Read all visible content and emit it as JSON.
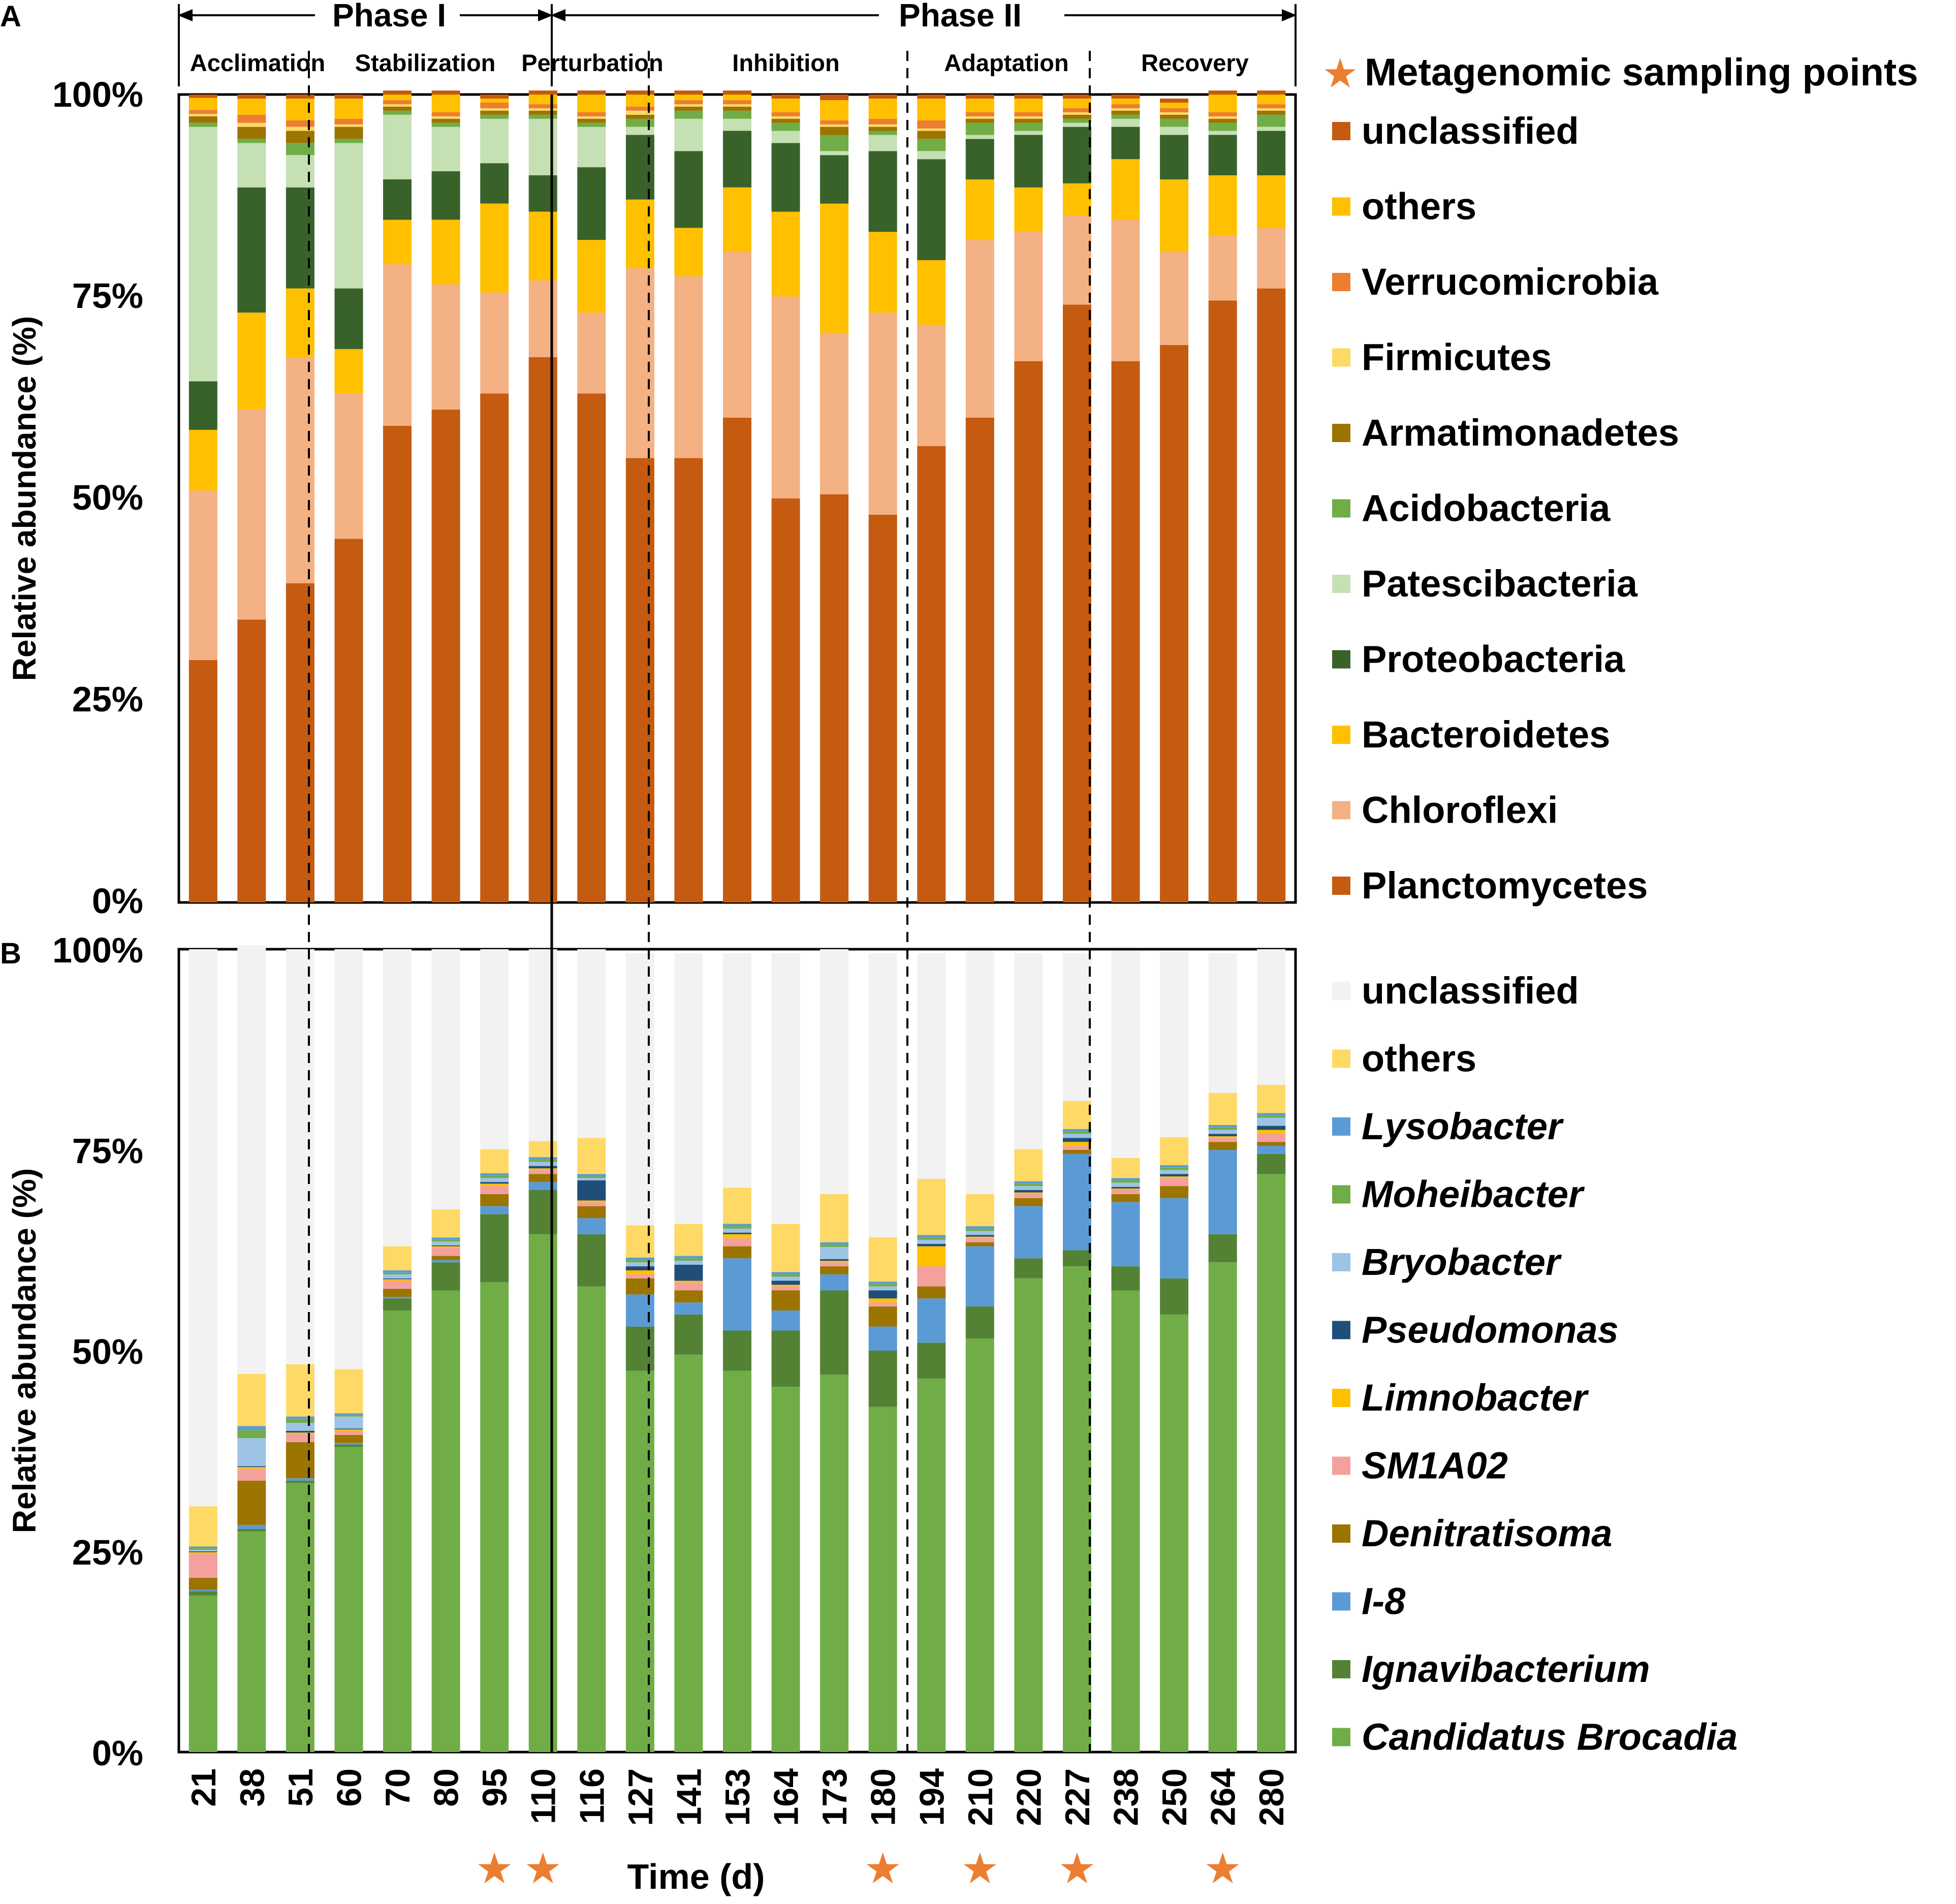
{
  "chart_data": [
    {
      "panel": "A",
      "type": "stacked-bar",
      "ylabel": "Relative abundance (%)",
      "xlabel": "",
      "ylim": [
        0,
        100
      ],
      "yticks": [
        "0%",
        "25%",
        "50%",
        "75%",
        "100%"
      ],
      "categories": [
        "21",
        "38",
        "51",
        "60",
        "70",
        "80",
        "95",
        "110",
        "116",
        "127",
        "141",
        "153",
        "164",
        "173",
        "180",
        "194",
        "210",
        "220",
        "227",
        "238",
        "250",
        "264",
        "280"
      ],
      "phases": [
        {
          "label": "Phase I"
        },
        {
          "label": "Phase II"
        }
      ],
      "stages": [
        "Acclimation",
        "Stabilization",
        "Perturbation",
        "Inhibition",
        "Adaptation",
        "Recovery"
      ],
      "legend_note": "Metagenomic sampling points",
      "series": [
        {
          "name": "Planctomycetes",
          "color": "#C55A11",
          "values": [
            30,
            35,
            39.5,
            45,
            59,
            61,
            63,
            67.5,
            63,
            55,
            55,
            60,
            50,
            50.5,
            48,
            56.5,
            60,
            67,
            74,
            67,
            69,
            74.5,
            76
          ]
        },
        {
          "name": "Chloroflexi",
          "color": "#F4B183",
          "values": [
            21,
            26,
            28,
            18,
            20,
            15.5,
            12.5,
            9.5,
            10,
            23.5,
            22.5,
            20.5,
            25,
            20,
            25,
            15,
            22,
            16,
            11,
            17.5,
            11.5,
            8,
            7.5
          ]
        },
        {
          "name": "Bacteroidetes",
          "color": "#FFC000",
          "values": [
            7.5,
            12,
            8.5,
            5.5,
            5.5,
            8,
            11,
            8.5,
            9,
            8.5,
            6,
            8,
            10.5,
            16,
            10,
            8,
            7.5,
            5.5,
            4,
            7.5,
            9,
            7.5,
            6.5
          ]
        },
        {
          "name": "Proteobacteria",
          "color": "#38622A",
          "values": [
            6,
            15.5,
            12.5,
            7.5,
            5,
            6,
            5,
            4.5,
            9,
            8,
            9.5,
            7,
            8.5,
            6,
            10,
            12.5,
            5,
            6.5,
            7,
            4,
            5.5,
            5,
            5.5
          ]
        },
        {
          "name": "Patescibacteria",
          "color": "#C5E0B3",
          "values": [
            31.5,
            5.5,
            4,
            18,
            8,
            5.5,
            5.5,
            7,
            5,
            1,
            4,
            1.5,
            1.5,
            0.5,
            2,
            1,
            0.5,
            0.5,
            0.5,
            1,
            1,
            0.5,
            0.5
          ]
        },
        {
          "name": "Acidobacteria",
          "color": "#70AD47",
          "values": [
            0.5,
            0.5,
            1.5,
            0.5,
            0.5,
            0.5,
            0.5,
            0.5,
            0.5,
            1,
            1,
            1,
            1,
            2,
            0.5,
            1.5,
            1.5,
            1,
            0.5,
            0.5,
            1,
            1,
            1.5
          ]
        },
        {
          "name": "Armatimonadetes",
          "color": "#9C7400",
          "values": [
            0.8,
            1.5,
            1.5,
            1.5,
            0.5,
            0.5,
            0.5,
            0.5,
            0.5,
            0.5,
            0.5,
            0.5,
            0.5,
            1,
            0.5,
            1,
            0.5,
            0.5,
            0.5,
            0.5,
            0.5,
            0.5,
            0.5
          ]
        },
        {
          "name": "Firmicutes",
          "color": "#FFD966",
          "values": [
            0.3,
            0.5,
            0.5,
            0.3,
            0.3,
            0.3,
            0.3,
            0.3,
            0.3,
            0.5,
            0.3,
            0.3,
            0.3,
            0.3,
            0.3,
            0.3,
            0.3,
            0.3,
            0.3,
            0.3,
            0.3,
            0.3,
            0.3
          ]
        },
        {
          "name": "Verrucomicrobia",
          "color": "#ED7D31",
          "values": [
            0.5,
            1,
            0.8,
            0.7,
            0.5,
            0.5,
            0.7,
            0.5,
            0.5,
            0.5,
            0.5,
            0.5,
            0.5,
            0.5,
            0.7,
            1,
            0.5,
            0.5,
            0.5,
            0.5,
            0.5,
            0.5,
            0.5
          ]
        },
        {
          "name": "others",
          "color": "#FFC000",
          "values": [
            1.5,
            2,
            2.7,
            2.5,
            0.7,
            2.2,
            0.5,
            1.2,
            2.2,
            1.5,
            0.7,
            0.7,
            1.7,
            2.5,
            2.5,
            2.7,
            1.7,
            1.7,
            1.2,
            0.7,
            0.7,
            2.2,
            1.2
          ]
        },
        {
          "name": "unclassified",
          "color": "#C55A11",
          "values": [
            0.4,
            0.5,
            0.5,
            0.5,
            0.5,
            0.5,
            0.5,
            0.5,
            0.5,
            0.5,
            0.5,
            0.5,
            0.5,
            0.7,
            0.5,
            0.5,
            0.5,
            0.5,
            0.5,
            0.5,
            0.5,
            0.5,
            0.5
          ]
        }
      ]
    },
    {
      "panel": "B",
      "type": "stacked-bar",
      "ylabel": "Relative abundance (%)",
      "xlabel": "Time (d)",
      "ylim": [
        0,
        100
      ],
      "yticks": [
        "0%",
        "25%",
        "50%",
        "75%",
        "100%"
      ],
      "categories": [
        "21",
        "38",
        "51",
        "60",
        "70",
        "80",
        "95",
        "110",
        "116",
        "127",
        "141",
        "153",
        "164",
        "173",
        "180",
        "194",
        "210",
        "220",
        "227",
        "238",
        "250",
        "264",
        "280"
      ],
      "metagenomic_sampling_points": [
        "95",
        "110",
        "180",
        "210",
        "227",
        "264"
      ],
      "series": [
        {
          "name": "Candidatus Brocadia",
          "color": "#70AD47",
          "values": [
            19.5,
            27.5,
            33.5,
            38,
            55,
            57.5,
            58.5,
            64.5,
            58,
            47.5,
            49.5,
            47.5,
            45.5,
            47,
            43,
            46.5,
            51.5,
            59,
            60.5,
            57.5,
            54.5,
            61,
            72
          ]
        },
        {
          "name": "Ignavibacterium",
          "color": "#548235",
          "values": [
            0.5,
            0.3,
            0.3,
            0.3,
            1.5,
            3.5,
            8.5,
            5.5,
            6.5,
            5.5,
            5,
            5,
            7,
            10.5,
            7,
            4.5,
            4,
            2.5,
            2,
            3,
            4.5,
            3.5,
            2.5
          ]
        },
        {
          "name": "I-8",
          "color": "#5B9BD5",
          "values": [
            0.2,
            0.5,
            0.3,
            0.2,
            0.2,
            0.3,
            1,
            1,
            2,
            4,
            1.5,
            9,
            2.5,
            2,
            3,
            5.5,
            7.5,
            6.5,
            12,
            8,
            10,
            10.5,
            1
          ]
        },
        {
          "name": "Denitratisoma",
          "color": "#9C7400",
          "values": [
            1.5,
            5.5,
            4.5,
            1,
            1,
            0.5,
            1.5,
            1,
            1.5,
            2,
            1.5,
            1.5,
            2.5,
            1,
            2.5,
            1.5,
            0.5,
            1,
            0.5,
            1,
            1.5,
            1,
            0.5
          ]
        },
        {
          "name": "SM1A02",
          "color": "#F4A09C",
          "values": [
            3,
            1.5,
            1,
            0.5,
            1,
            1,
            1,
            0.5,
            0.5,
            0.5,
            1,
            1,
            0.5,
            0.5,
            0.5,
            2.5,
            0.5,
            0.5,
            0.5,
            0.5,
            1,
            0.5,
            1
          ]
        },
        {
          "name": "Limnobacter",
          "color": "#FFC000",
          "values": [
            0.2,
            0.2,
            0.2,
            0.2,
            0.2,
            0.2,
            0.3,
            0.2,
            0.2,
            0.5,
            0.2,
            0.5,
            0.2,
            0.2,
            0.5,
            2.5,
            0.2,
            0.2,
            0.5,
            0.2,
            0.2,
            0.2,
            0.5
          ]
        },
        {
          "name": "Pseudomonas",
          "color": "#1F4E79",
          "values": [
            0.1,
            0.1,
            0.2,
            0.1,
            0.1,
            0.1,
            0.2,
            0.3,
            2.5,
            0.5,
            2,
            0.2,
            0.5,
            0.2,
            1,
            0.3,
            0.2,
            0.3,
            0.5,
            0.2,
            0.3,
            0.3,
            0.5
          ]
        },
        {
          "name": "Bryobacter",
          "color": "#9DC3E6",
          "values": [
            0.2,
            3.5,
            1,
            1.5,
            0.5,
            0.5,
            0.5,
            0.5,
            0.3,
            0.5,
            0.5,
            0.5,
            0.5,
            1.5,
            0.5,
            0.5,
            0.5,
            0.5,
            0.5,
            0.5,
            0.5,
            0.5,
            1
          ]
        },
        {
          "name": "Moheibacter",
          "color": "#70AD47",
          "values": [
            0.2,
            1,
            0.5,
            0.2,
            0.2,
            0.2,
            0.3,
            0.3,
            0.2,
            0.3,
            0.3,
            0.3,
            0.3,
            0.3,
            0.3,
            0.3,
            0.3,
            0.3,
            0.3,
            0.3,
            0.3,
            0.3,
            0.3
          ]
        },
        {
          "name": "Lysobacter",
          "color": "#5B9BD5",
          "values": [
            0.2,
            0.5,
            0.3,
            0.2,
            0.3,
            0.3,
            0.3,
            0.3,
            0.3,
            0.3,
            0.3,
            0.3,
            0.3,
            0.3,
            0.3,
            0.3,
            0.3,
            0.3,
            0.3,
            0.3,
            0.3,
            0.3,
            0.3
          ]
        },
        {
          "name": "others",
          "color": "#FFD966",
          "values": [
            5,
            6.5,
            6.5,
            5.5,
            3,
            3.5,
            3,
            2,
            4.5,
            4,
            4,
            4.5,
            6,
            6,
            5.5,
            7,
            4,
            4,
            3.5,
            2.5,
            3.5,
            4,
            3.5
          ]
        },
        {
          "name": "unclassified",
          "color": "#F2F2F2",
          "values": [
            69.4,
            53.4,
            51.7,
            52.3,
            37,
            32.4,
            24.9,
            23.9,
            23.5,
            33.9,
            33.7,
            29.2,
            33.7,
            30.5,
            35.4,
            28.1,
            30.3,
            24.4,
            18.4,
            25.8,
            23.1,
            17.4,
            16.9
          ]
        }
      ]
    }
  ],
  "panel_labels": {
    "a": "A",
    "b": "B"
  },
  "markers": {
    "star": "★"
  }
}
